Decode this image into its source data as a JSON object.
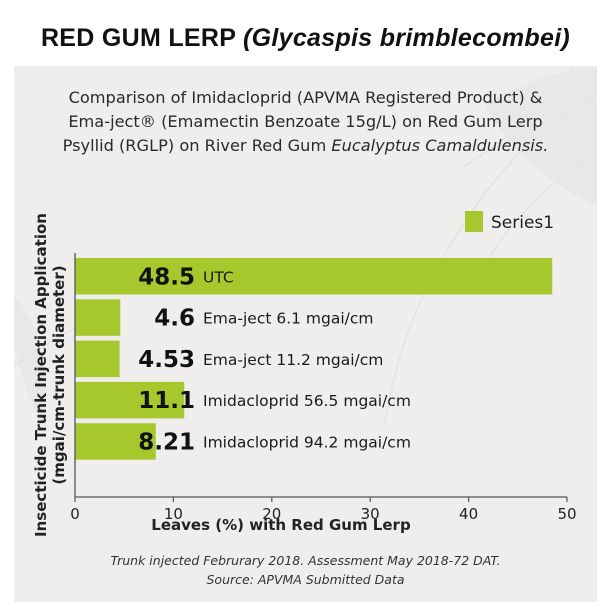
{
  "header": {
    "title_main": "RED GUM LERP",
    "title_species": "(Glycaspis brimblecombei)"
  },
  "subtitle": {
    "line1": "Comparison of Imidacloprid (APVMA Registered Product) &",
    "line2": "Ema-ject® (Emamectin Benzoate 15g/L) on Red Gum Lerp",
    "line3_plain": "Psyllid (RGLP) on River Red Gum",
    "line3_italic": "Eucalyptus Camaldulensis."
  },
  "footnote": {
    "line1": "Trunk injected Februrary 2018. Assessment May 2018-72 DAT.",
    "line2": "Source: APVMA Submitted Data"
  },
  "colors": {
    "bar": "#a6c82c",
    "axis": "#555555",
    "panel": "#efeeec"
  },
  "chart_data": {
    "type": "bar",
    "orientation": "horizontal",
    "categories": [
      "UTC",
      "Ema-ject 6.1 mgai/cm",
      "Ema-ject 11.2 mgai/cm",
      "Imidacloprid 56.5 mgai/cm",
      "Imidacloprid 94.2 mgai/cm"
    ],
    "series": [
      {
        "name": "Series1",
        "values": [
          48.5,
          4.6,
          4.53,
          11.1,
          8.21
        ],
        "value_labels": [
          "48.5",
          "4.6",
          "4.53",
          "11.1",
          "8.21"
        ]
      }
    ],
    "xlabel": "Leaves (%) with Red Gum Lerp",
    "ylabel_line1": "Insecticide Trunk Injection Application",
    "ylabel_line2": "(mgai/cm-trunk diameter)",
    "xlim": [
      0,
      50
    ],
    "xticks": [
      "0",
      "10",
      "20",
      "30",
      "40",
      "50"
    ],
    "grid": false,
    "legend_position": "top-right"
  }
}
